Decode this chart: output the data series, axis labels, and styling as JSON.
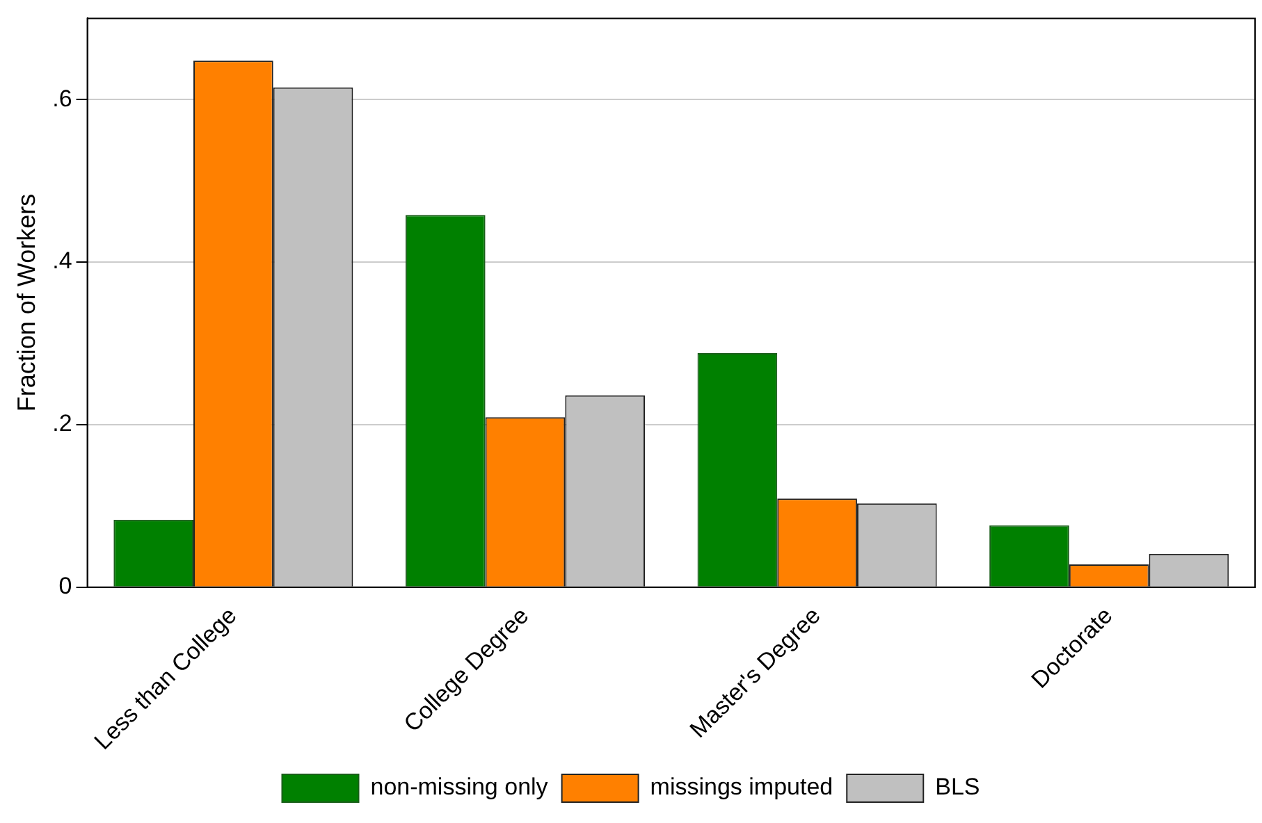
{
  "chart_data": {
    "type": "bar",
    "ylabel": "Fraction of Workers",
    "categories": [
      "Less than College",
      "College Degree",
      "Master's Degree",
      "Doctorate"
    ],
    "series": [
      {
        "name": "non-missing only",
        "color": "#008000",
        "values": [
          0.083,
          0.458,
          0.288,
          0.076
        ],
        "line_style": "dashed"
      },
      {
        "name": "missings imputed",
        "color": "#ff8000",
        "values": [
          0.648,
          0.209,
          0.109,
          0.028
        ]
      },
      {
        "name": "BLS",
        "color": "#c0c0c0",
        "values": [
          0.615,
          0.236,
          0.103,
          0.041
        ]
      }
    ],
    "ylim": [
      0,
      0.7
    ],
    "yticks": [
      {
        "value": 0,
        "label": "0"
      },
      {
        "value": 0.2,
        "label": ".2"
      },
      {
        "value": 0.4,
        "label": ".4"
      },
      {
        "value": 0.6,
        "label": ".6"
      }
    ],
    "grid": "y",
    "legend": "bottom"
  }
}
